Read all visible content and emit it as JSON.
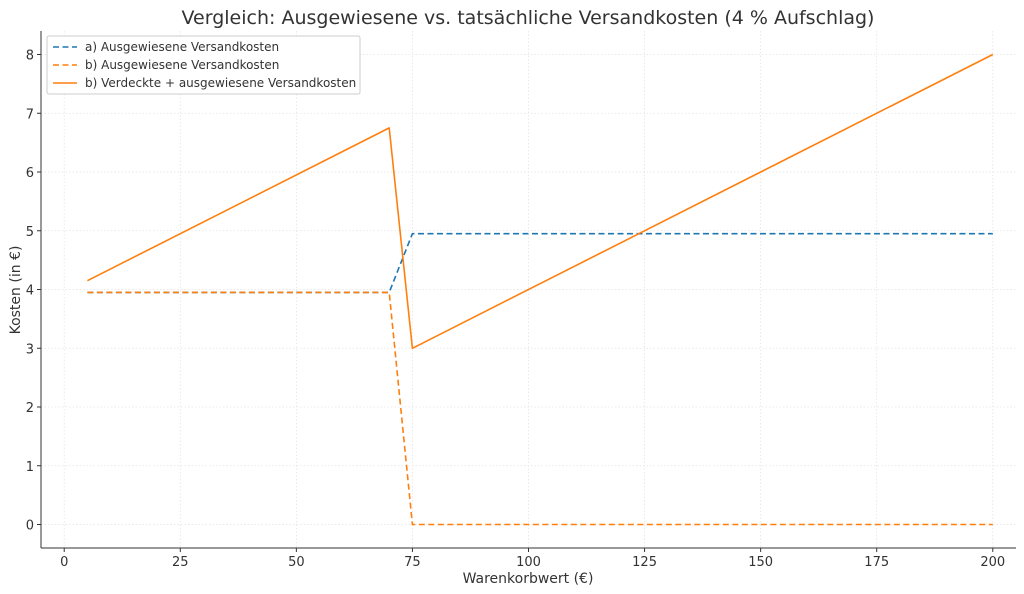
{
  "chart_data": {
    "type": "line",
    "title": "Vergleich: Ausgewiesene vs. tatsächliche Versandkosten (4 % Aufschlag)",
    "xlabel": "Warenkorbwert (€)",
    "ylabel": "Kosten (in €)",
    "xlim": [
      -5,
      205
    ],
    "ylim": [
      -0.4,
      8.4
    ],
    "x_ticks": [
      0,
      25,
      50,
      75,
      100,
      125,
      150,
      175,
      200
    ],
    "x_tick_labels": [
      "0",
      "25",
      "50",
      "75",
      "100",
      "125",
      "150",
      "175",
      "200"
    ],
    "y_ticks": [
      0,
      1,
      2,
      3,
      4,
      5,
      6,
      7,
      8
    ],
    "y_tick_labels": [
      "0",
      "1",
      "2",
      "3",
      "4",
      "5",
      "6",
      "7",
      "8"
    ],
    "grid": true,
    "legend_position": "top-left",
    "series": [
      {
        "name": "a) Ausgewiesene Versandkosten",
        "color": "#1f77b4",
        "style": "dashed",
        "x": [
          5,
          70,
          75,
          200
        ],
        "y": [
          3.95,
          3.95,
          4.95,
          4.95
        ]
      },
      {
        "name": "b) Ausgewiesene Versandkosten",
        "color": "#ff7f0e",
        "style": "dashed",
        "x": [
          5,
          70,
          75,
          200
        ],
        "y": [
          3.95,
          3.95,
          0,
          0
        ]
      },
      {
        "name": "b) Verdeckte + ausgewiesene Versandkosten",
        "color": "#ff7f0e",
        "style": "solid",
        "x": [
          5,
          70,
          75,
          200
        ],
        "y": [
          4.15,
          6.75,
          3.0,
          8.0
        ]
      }
    ]
  }
}
